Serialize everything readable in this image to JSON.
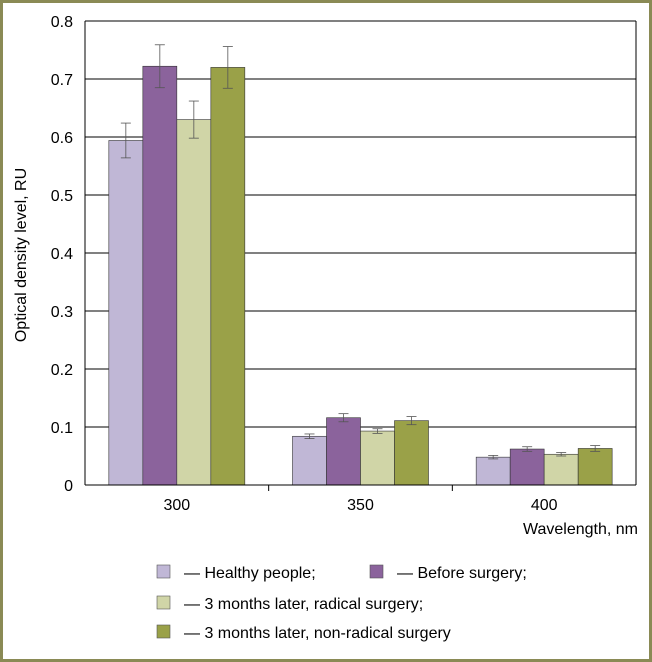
{
  "chart_data": {
    "type": "bar",
    "categories": [
      "300",
      "350",
      "400"
    ],
    "xlabel": "Wavelength, nm",
    "ylabel": "Optical density level, RU",
    "ylim": [
      0,
      0.8
    ],
    "yticks": [
      "0",
      "0.1",
      "0.2",
      "0.3",
      "0.4",
      "0.5",
      "0.6",
      "0.7",
      "0.8"
    ],
    "grid": true,
    "error_bars": true,
    "legend_position": "bottom",
    "series": [
      {
        "name": "— Healthy people;",
        "color": "#c0b7d6",
        "values": [
          0.594,
          0.084,
          0.048
        ],
        "errors": [
          0.03,
          0.004,
          0.003
        ]
      },
      {
        "name": "— Before surgery;",
        "color": "#8b639c",
        "values": [
          0.722,
          0.116,
          0.062
        ],
        "errors": [
          0.037,
          0.007,
          0.004
        ]
      },
      {
        "name": "— 3 months later, radical surgery;",
        "color": "#d0d5a7",
        "values": [
          0.63,
          0.093,
          0.053
        ],
        "errors": [
          0.032,
          0.004,
          0.003
        ]
      },
      {
        "name": "— 3 months later, non-radical surgery",
        "color": "#9aa148",
        "values": [
          0.72,
          0.111,
          0.063
        ],
        "errors": [
          0.036,
          0.007,
          0.005
        ]
      }
    ]
  }
}
